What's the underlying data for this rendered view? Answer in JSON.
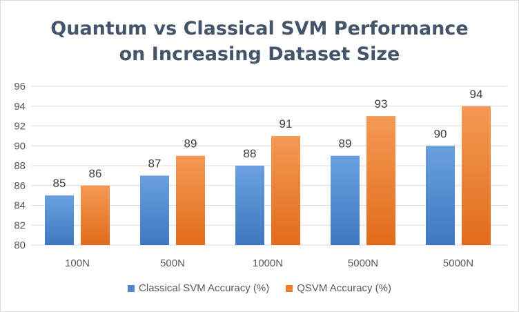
{
  "chart_data": {
    "type": "bar",
    "title": [
      "Quantum vs Classical SVM Performance",
      "on Increasing Dataset Size"
    ],
    "categories": [
      "100N",
      "500N",
      "1000N",
      "5000N",
      "5000N"
    ],
    "series": [
      {
        "name": "Classical SVM Accuracy (%)",
        "values": [
          85,
          87,
          88,
          89,
          90
        ],
        "color": "#4f88d0"
      },
      {
        "name": "QSVM Accuracy (%)",
        "values": [
          86,
          89,
          91,
          93,
          94
        ],
        "color": "#ee7d2d"
      }
    ],
    "ylim": [
      80,
      96
    ],
    "yticks": [
      "80",
      "82",
      "84",
      "86",
      "88",
      "90",
      "92",
      "94",
      "96"
    ],
    "ytick_values": [
      80,
      82,
      84,
      86,
      88,
      90,
      92,
      94,
      96
    ],
    "grid": true,
    "legend_position": "bottom",
    "data_labels": true
  }
}
